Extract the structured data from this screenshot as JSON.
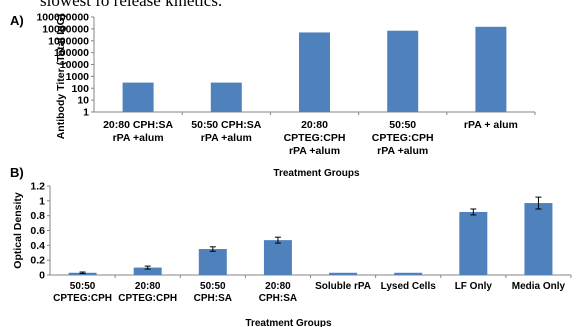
{
  "caption_fragment": "slowest fo release kinetics.",
  "chart_data": [
    {
      "panel": "A)",
      "type": "bar",
      "scale": "log",
      "categories": [
        [
          "20:80 CPH:SA",
          "rPA +alum"
        ],
        [
          "50:50 CPH:SA",
          "rPA +alum"
        ],
        [
          "20:80",
          "CPTEG:CPH",
          "rPA +alum"
        ],
        [
          "50:50",
          "CPTEG:CPH",
          "rPA +alum"
        ],
        [
          "rPA + alum"
        ]
      ],
      "values": [
        300,
        300,
        5000000,
        7000000,
        15000000
      ],
      "ylabel": "Antibody Titer (Total IgG)",
      "xlabel": "Treatment Groups",
      "yticks": [
        "1",
        "10",
        "100",
        "1000",
        "10000",
        "100000",
        "1000000",
        "10000000",
        "100000000"
      ],
      "ylim": [
        1,
        100000000
      ],
      "bar_color": "#4f81bd"
    },
    {
      "panel": "B)",
      "type": "bar",
      "categories": [
        [
          "50:50",
          "CPTEG:CPH"
        ],
        [
          "20:80",
          "CPTEG:CPH"
        ],
        [
          "50:50",
          "CPH:SA"
        ],
        [
          "20:80",
          "CPH:SA"
        ],
        [
          "Soluble rPA"
        ],
        [
          "Lysed Cells"
        ],
        [
          "LF Only"
        ],
        [
          "Media Only"
        ]
      ],
      "values": [
        0.03,
        0.1,
        0.35,
        0.47,
        0.03,
        0.03,
        0.85,
        0.97
      ],
      "errors": [
        0.01,
        0.02,
        0.03,
        0.04,
        0,
        0,
        0.04,
        0.08
      ],
      "ylabel": "Optical Density",
      "xlabel": "Treatment Groups",
      "yticks": [
        "0",
        "0.2",
        "0.4",
        "0.6",
        "0.8",
        "1",
        "1.2"
      ],
      "ylim": [
        0,
        1.2
      ],
      "bar_color": "#4f81bd"
    }
  ]
}
